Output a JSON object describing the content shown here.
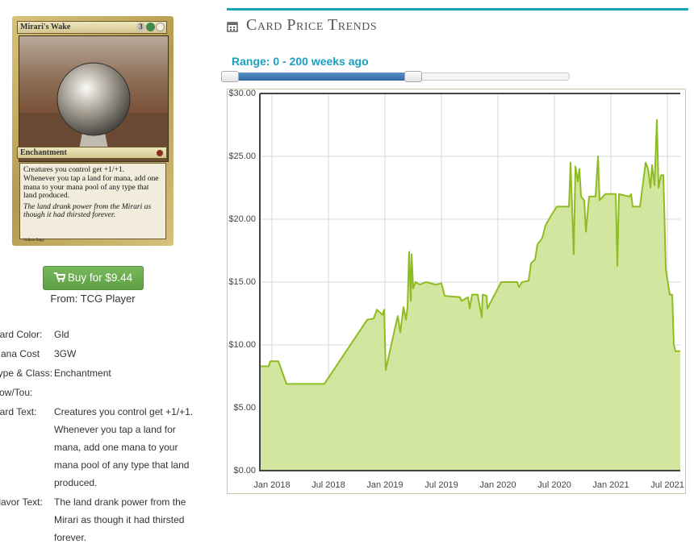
{
  "card": {
    "name": "Mirari's Wake",
    "mana": "3",
    "type_line": "Enchantment",
    "rules_text": [
      "Creatures you control get +1/+1.",
      "Whenever you tap a land for mana, add one mana to your mana pool of any type that land produced."
    ],
    "flavor_text": "The land drank power from the Mirari as though it had thirsted forever.",
    "artist": "Volkan Baga"
  },
  "buy_button": "Buy for $9.44",
  "source": "From: TCG Player",
  "details": [
    {
      "label": "Card Color:",
      "value": "Gld"
    },
    {
      "label": "Mana Cost",
      "value": "3GW"
    },
    {
      "label": "Type & Class:",
      "value": "Enchantment"
    },
    {
      "label": "Pow/Tou:"
    },
    {
      "label": "Card Text:",
      "value": "Creatures you control get +1/+1. Whenever you tap a land for mana, add one mana to your mana pool of any type that land produced."
    },
    {
      "label": "Flavor Text:",
      "value": "The land drank power from the Mirari as though it had thirsted forever."
    }
  ],
  "section_title": "Card Price Trends",
  "range_label": "Range: 0 - 200 weeks ago",
  "chart_data": {
    "type": "area",
    "x": [
      2017.893,
      2017.971,
      2017.986,
      2018.057,
      2018.129,
      2018.464,
      2018.843,
      2018.9,
      2018.929,
      2018.979,
      2018.993,
      2019.007,
      2019.093,
      2019.114,
      2019.136,
      2019.164,
      2019.186,
      2019.2,
      2019.214,
      2019.229,
      2019.236,
      2019.25,
      2019.271,
      2019.307,
      2019.364,
      2019.45,
      2019.5,
      2019.529,
      2019.664,
      2019.679,
      2019.736,
      2019.75,
      2019.771,
      2019.821,
      2019.857,
      2019.864,
      2019.9,
      2019.907,
      2020.029,
      2020.171,
      2020.186,
      2020.214,
      2020.271,
      2020.293,
      2020.329,
      2020.35,
      2020.393,
      2020.421,
      2020.471,
      2020.521,
      2020.629,
      2020.643,
      2020.671,
      2020.686,
      2020.707,
      2020.721,
      2020.736,
      2020.764,
      2020.779,
      2020.807,
      2020.864,
      2020.886,
      2020.9,
      2020.95,
      2021.043,
      2021.057,
      2021.071,
      2021.164,
      2021.179,
      2021.193,
      2021.257,
      2021.279,
      2021.307,
      2021.329,
      2021.35,
      2021.364,
      2021.386,
      2021.407,
      2021.421,
      2021.443,
      2021.464,
      2021.486,
      2021.521,
      2021.543,
      2021.557,
      2021.571,
      2021.614
    ],
    "values": [
      8.3,
      8.3,
      8.7,
      8.7,
      6.9,
      6.9,
      12.0,
      12.1,
      12.8,
      12.4,
      12.8,
      8.0,
      11.5,
      12.3,
      11.0,
      13.0,
      12.0,
      13.0,
      17.4,
      13.5,
      17.2,
      14.5,
      15.0,
      14.8,
      15.0,
      14.8,
      14.9,
      13.9,
      13.8,
      13.5,
      13.8,
      12.9,
      14.0,
      14.0,
      12.2,
      14.0,
      13.9,
      12.9,
      15.0,
      15.0,
      14.6,
      15.0,
      15.1,
      16.5,
      16.8,
      18.0,
      18.5,
      19.5,
      20.3,
      21.0,
      21.0,
      24.5,
      17.2,
      24.2,
      23.0,
      24.0,
      21.8,
      21.5,
      19.0,
      21.8,
      21.8,
      25.0,
      21.5,
      22.0,
      22.0,
      16.3,
      22.0,
      21.8,
      22.0,
      21.0,
      21.0,
      22.5,
      24.5,
      24.0,
      22.5,
      24.3,
      22.7,
      27.9,
      22.5,
      23.5,
      23.5,
      16.0,
      14.0,
      14.0,
      10.0,
      9.5,
      9.5
    ],
    "color": "#8ebd21",
    "fill_color": "#d3e69f",
    "xlim": [
      2017.893,
      2021.614
    ],
    "xticks": [
      {
        "value": 2018,
        "label": "Jan 2018"
      },
      {
        "value": 2018.5,
        "label": "Jul 2018"
      },
      {
        "value": 2019,
        "label": "Jan 2019"
      },
      {
        "value": 2019.5,
        "label": "Jul 2019"
      },
      {
        "value": 2020,
        "label": "Jan 2020"
      },
      {
        "value": 2020.5,
        "label": "Jul 2020"
      },
      {
        "value": 2021,
        "label": "Jan 2021"
      },
      {
        "value": 2021.5,
        "label": "Jul 2021"
      }
    ],
    "ylim": [
      0,
      30
    ],
    "yticks": [
      {
        "value": 0,
        "label": "$0.00"
      },
      {
        "value": 5,
        "label": "$5.00"
      },
      {
        "value": 10,
        "label": "$10.00"
      },
      {
        "value": 15,
        "label": "$15.00"
      },
      {
        "value": 20,
        "label": "$20.00"
      },
      {
        "value": 25,
        "label": "$25.00"
      },
      {
        "value": 30,
        "label": "$30.00"
      }
    ],
    "grid": true
  }
}
